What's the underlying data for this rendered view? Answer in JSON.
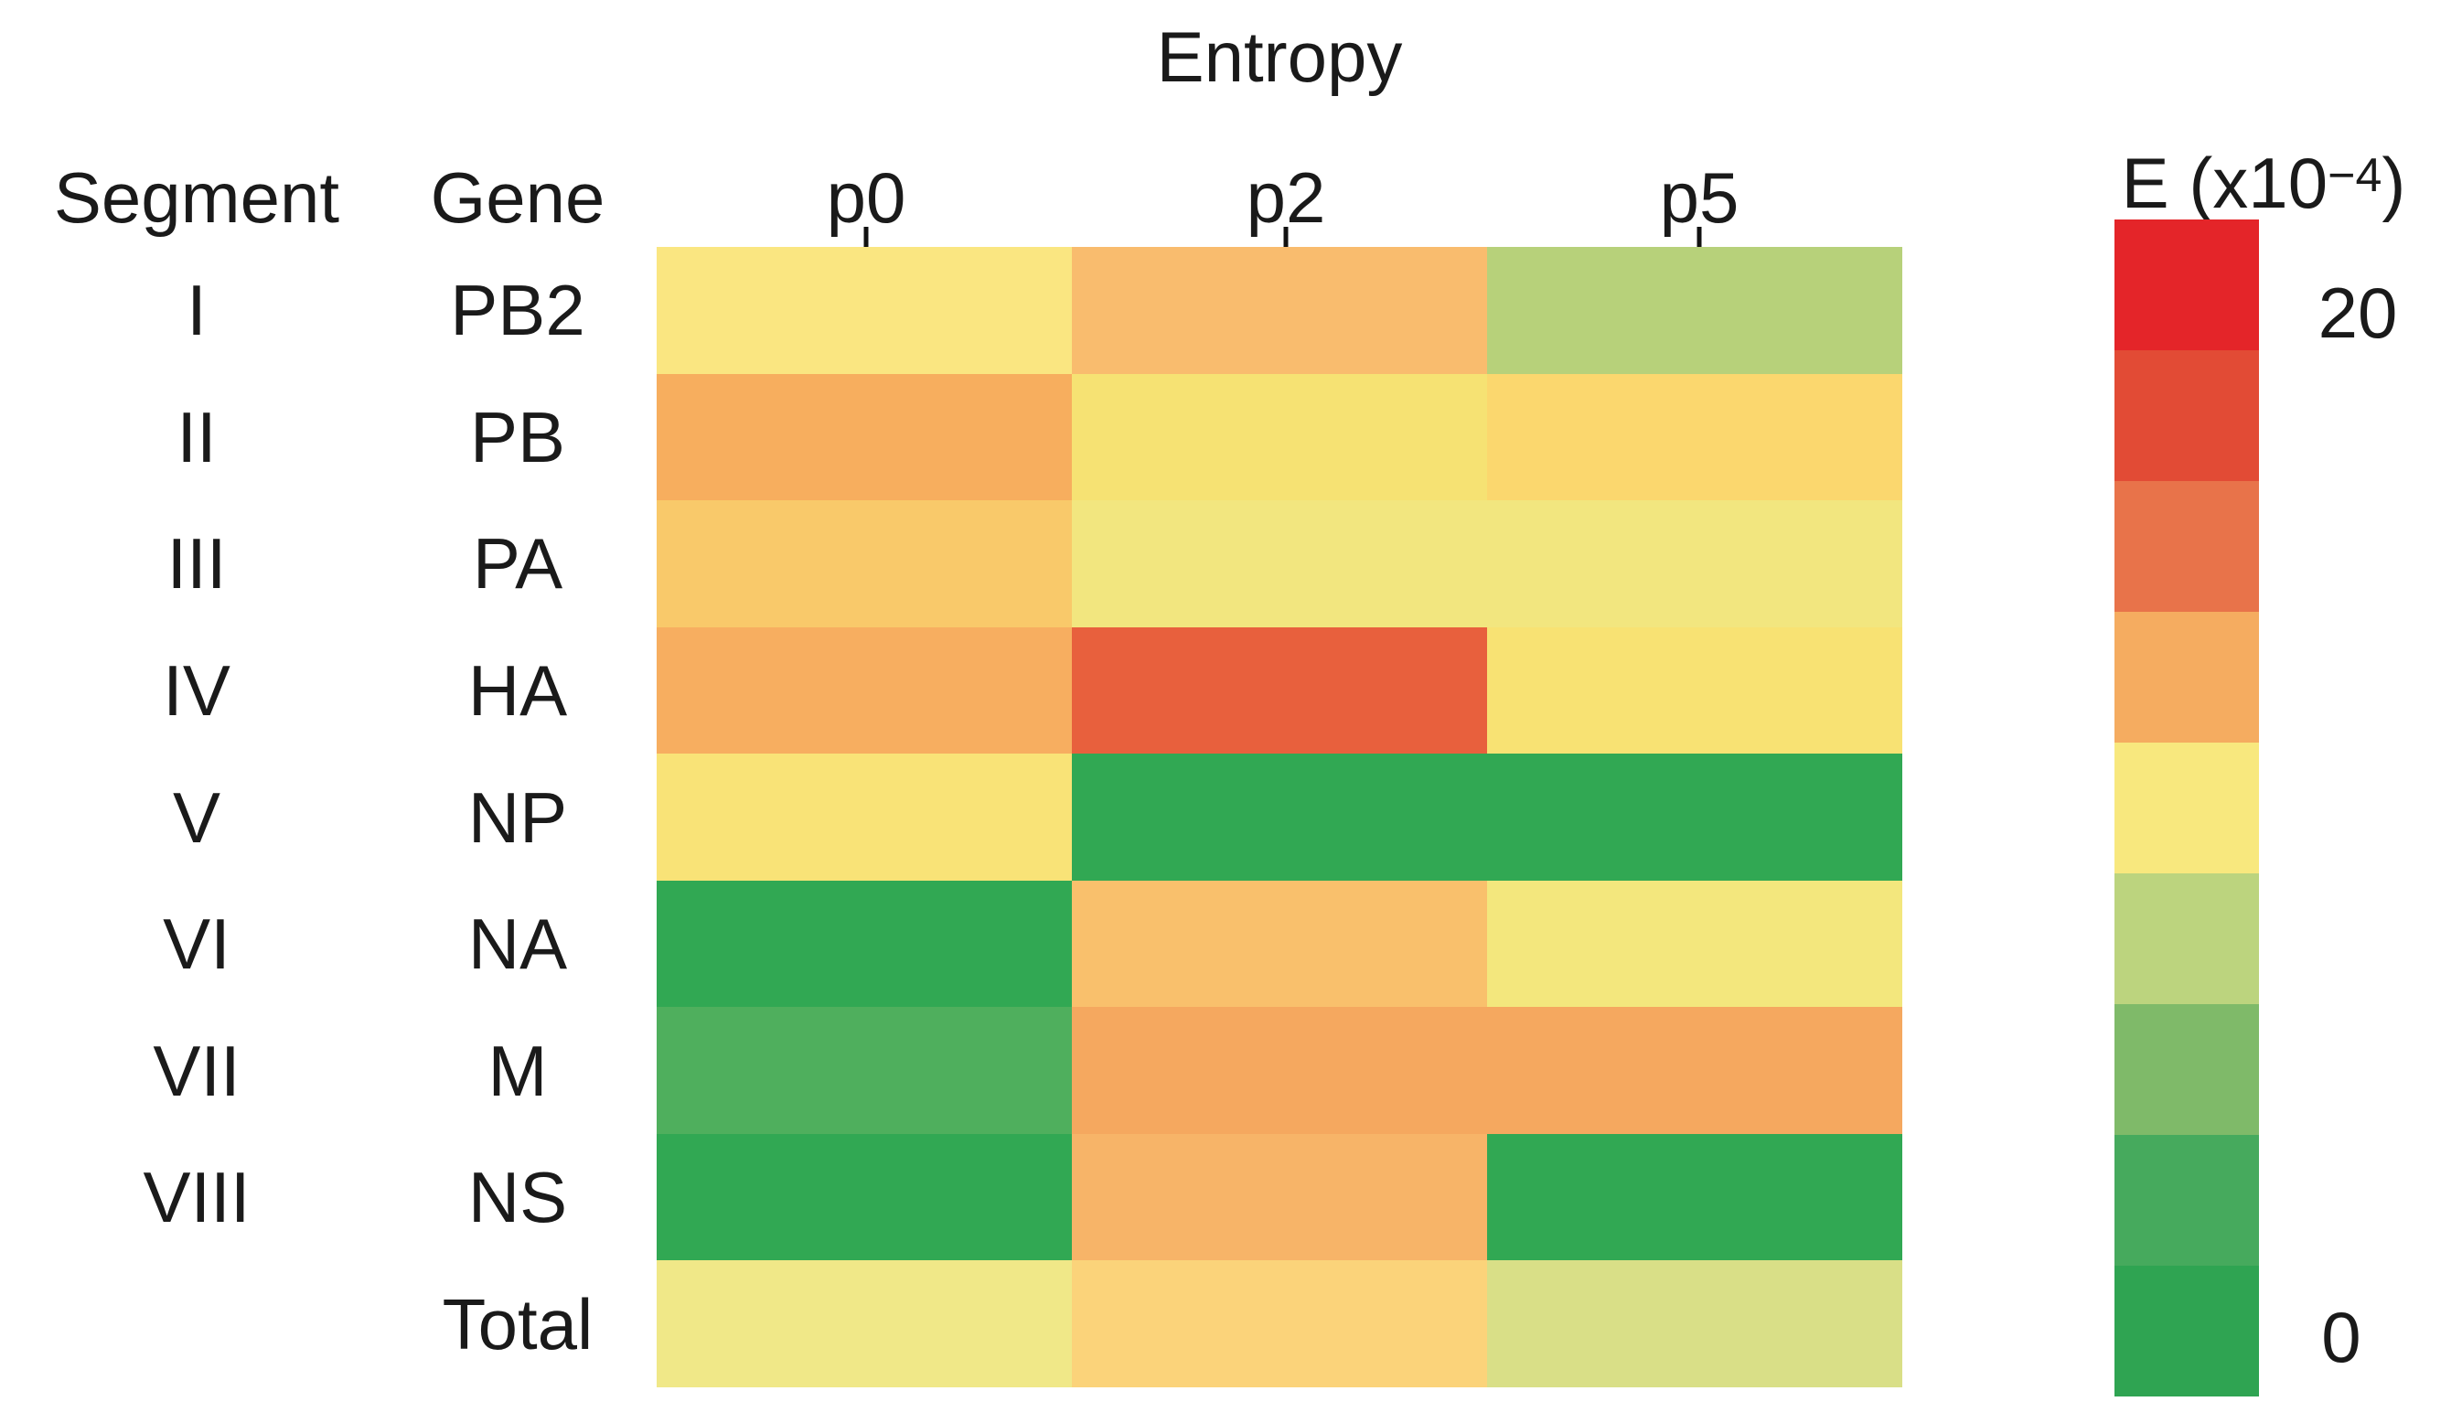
{
  "title": "Entropy",
  "header": {
    "segment_col": "Segment",
    "gene_col": "Gene"
  },
  "legend": {
    "label_pre": "E (x10",
    "label_sup": "−4",
    "label_post": ")",
    "max_label": "20",
    "min_label": "0",
    "bands_top_to_bottom": [
      "#e42529",
      "#e24b35",
      "#e8734a",
      "#f5ac60",
      "#f8e87e",
      "#bcd47e",
      "#7fba69",
      "#46aa5d",
      "#2fa452"
    ]
  },
  "chart_data": {
    "type": "heatmap",
    "title": "Entropy",
    "x": [
      "p0",
      "p2",
      "p5"
    ],
    "y_segment_labels": [
      "I",
      "II",
      "III",
      "IV",
      "V",
      "VI",
      "VII",
      "VIII",
      ""
    ],
    "y_gene_labels": [
      "PB2",
      "PB",
      "PA",
      "HA",
      "NP",
      "NA",
      "M",
      "NS",
      "Total"
    ],
    "colorscale": {
      "min": 0,
      "max": 20,
      "unit": "x10^-4",
      "low_color": "#2fa452",
      "mid_color": "#f8e87e",
      "high_color": "#e42529"
    },
    "values_estimated_from_colors": true,
    "rows": [
      {
        "segment": "I",
        "gene": "PB2",
        "colors": [
          "#fae681",
          "#f9bc6e",
          "#b7d17a"
        ],
        "values_est": [
          10,
          12,
          7.5
        ]
      },
      {
        "segment": "II",
        "gene": "PB",
        "colors": [
          "#f7ae5e",
          "#f6e273",
          "#fbd76e"
        ],
        "values_est": [
          12.5,
          10,
          11
        ]
      },
      {
        "segment": "III",
        "gene": "PA",
        "colors": [
          "#f9c96a",
          "#f2e67f",
          "#f2e67f"
        ],
        "values_est": [
          11.5,
          9.5,
          9.5
        ]
      },
      {
        "segment": "IV",
        "gene": "HA",
        "colors": [
          "#f7ae60",
          "#e8603d",
          "#f8e273"
        ],
        "values_est": [
          12.5,
          16.5,
          10
        ]
      },
      {
        "segment": "V",
        "gene": "NP",
        "colors": [
          "#f9e377",
          "#31a853",
          "#31a853"
        ],
        "values_est": [
          10,
          1,
          1
        ]
      },
      {
        "segment": "VI",
        "gene": "NA",
        "colors": [
          "#31a853",
          "#f9c06c",
          "#f3e77d"
        ],
        "values_est": [
          1,
          12,
          9.5
        ]
      },
      {
        "segment": "VII",
        "gene": "M",
        "colors": [
          "#4faf5d",
          "#f5a85f",
          "#f5a85f"
        ],
        "values_est": [
          3.5,
          13,
          13
        ]
      },
      {
        "segment": "VIII",
        "gene": "NS",
        "colors": [
          "#31a853",
          "#f7b468",
          "#31a853"
        ],
        "values_est": [
          1,
          12.5,
          1
        ]
      },
      {
        "segment": "",
        "gene": "Total",
        "colors": [
          "#f0e888",
          "#fbd37a",
          "#d9df87"
        ],
        "values_est": [
          9.5,
          11,
          8.5
        ]
      }
    ],
    "layout": {
      "legend_position": "right",
      "grid": "off",
      "column_header_ticks": true
    }
  }
}
